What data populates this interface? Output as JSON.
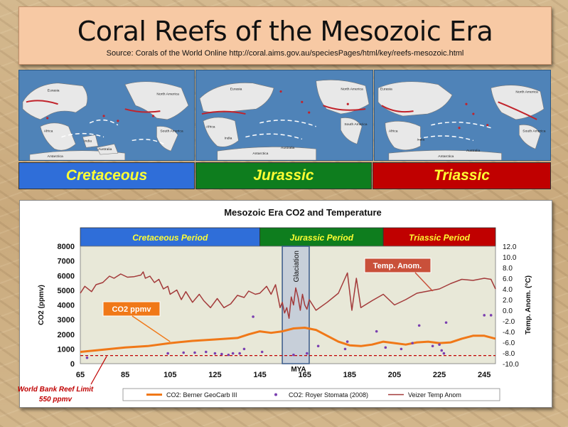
{
  "title": "Coral Reefs of the Mesozoic Era",
  "source": "Source: Corals of the World Online http://coral.aims.gov.au/speciesPages/html/key/reefs-mesozoic.html",
  "maps": [
    {
      "name": "cretaceous",
      "labels": [
        "Eurasia",
        "North America",
        "Africa",
        "South America",
        "India",
        "Antarctica",
        "Australia"
      ]
    },
    {
      "name": "jurassic",
      "labels": [
        "Eurasia",
        "North America",
        "Africa",
        "South America",
        "India",
        "Antarctica",
        "Australia"
      ]
    },
    {
      "name": "triassic",
      "labels": [
        "Eurasia",
        "North America",
        "Africa",
        "South America",
        "India",
        "Antarctica",
        "Australia"
      ]
    }
  ],
  "periods": [
    {
      "label": "Cretaceous",
      "color": "#2f6ed9"
    },
    {
      "label": "Jurassic",
      "color": "#0e7d1e"
    },
    {
      "label": "Triassic",
      "color": "#c00000"
    }
  ],
  "world_bank_label": [
    "World Bank Reef Limit",
    "550 ppmv"
  ],
  "chart_data": {
    "type": "line",
    "title": "Mesozoic Era CO2 and Temperature",
    "xlabel": "MYA",
    "ylabel": "CO2 (ppmv)",
    "y2label": "Temp. Anom. (°C)",
    "xlim": [
      65,
      250
    ],
    "ylim": [
      0,
      8000
    ],
    "y2lim": [
      -10,
      12
    ],
    "xticks": [
      65,
      85,
      105,
      125,
      145,
      165,
      185,
      205,
      225,
      245
    ],
    "yticks": [
      0,
      1000,
      2000,
      3000,
      4000,
      5000,
      6000,
      7000,
      8000
    ],
    "y2ticks": [
      -10.0,
      -8.0,
      -6.0,
      -4.0,
      -2.0,
      0.0,
      2.0,
      4.0,
      6.0,
      8.0,
      10.0,
      12.0
    ],
    "period_bands": [
      {
        "label": "Cretaceous Period",
        "from": 65,
        "to": 145,
        "color": "#2f6ed9",
        "text_color": "#ffff33"
      },
      {
        "label": "Jurassic Period",
        "from": 145,
        "to": 200,
        "color": "#0e7d1e",
        "text_color": "#ffff33"
      },
      {
        "label": "Triassic Period",
        "from": 200,
        "to": 250,
        "color": "#c00000",
        "text_color": "#ffff33"
      }
    ],
    "glaciation": {
      "label": "Glaciation",
      "from": 155,
      "to": 167
    },
    "reef_limit": 550,
    "annotations": [
      {
        "label": "CO2 ppmv",
        "x": 90,
        "y": 3700,
        "color": "#f07818"
      },
      {
        "label": "Temp. Anom.",
        "x": 190,
        "y": 6500,
        "color": "#c9503a"
      }
    ],
    "series": [
      {
        "name": "CO2: Berner GeoCarb III",
        "color": "#f07818",
        "axis": "left",
        "x": [
          65,
          75,
          85,
          95,
          105,
          115,
          125,
          135,
          140,
          145,
          150,
          155,
          160,
          165,
          170,
          175,
          180,
          185,
          190,
          195,
          200,
          205,
          210,
          215,
          220,
          225,
          230,
          235,
          240,
          245,
          250
        ],
        "y": [
          800,
          950,
          1100,
          1200,
          1400,
          1550,
          1650,
          1750,
          2000,
          2200,
          2100,
          2200,
          2400,
          2450,
          2300,
          1900,
          1500,
          1250,
          1200,
          1300,
          1500,
          1400,
          1300,
          1450,
          1500,
          1400,
          1450,
          1700,
          1900,
          1900,
          1700
        ]
      },
      {
        "name": "CO2: Royer Stomata (2008)",
        "color": "#7a3fb0",
        "axis": "left",
        "type": "scatter",
        "x": [
          68,
          104,
          111,
          116,
          121,
          125,
          128,
          131,
          133,
          136,
          138,
          142,
          146,
          160,
          166,
          171,
          183,
          184,
          197,
          201,
          208,
          213,
          216,
          222,
          225,
          226,
          227,
          228,
          245,
          248
        ],
        "y": [
          400,
          700,
          750,
          750,
          800,
          700,
          650,
          600,
          700,
          700,
          1000,
          3200,
          800,
          600,
          700,
          1200,
          1000,
          1500,
          2200,
          1100,
          1000,
          1400,
          2600,
          1200,
          1300,
          900,
          700,
          2800,
          3300,
          3300
        ]
      },
      {
        "name": "Veizer Temp Anom",
        "color": "#a33a3a",
        "axis": "right",
        "x": [
          65,
          67,
          70,
          72,
          75,
          78,
          80,
          83,
          86,
          89,
          92,
          93,
          94,
          96,
          98,
          100,
          102,
          104,
          105,
          108,
          110,
          112,
          115,
          118,
          120,
          123,
          126,
          129,
          132,
          135,
          138,
          140,
          143,
          145,
          148,
          150,
          152,
          154,
          155,
          156,
          157,
          158,
          159,
          160,
          161,
          162,
          163,
          164,
          165,
          166,
          167,
          170,
          175,
          180,
          184,
          186,
          188,
          190,
          195,
          200,
          205,
          210,
          215,
          220,
          225,
          230,
          235,
          240,
          245,
          248,
          250
        ],
        "y": [
          3.2,
          4.5,
          3.5,
          4.8,
          5.2,
          6.4,
          6.0,
          6.8,
          6.2,
          6.3,
          6.6,
          7.2,
          6.0,
          6.4,
          5.2,
          5.8,
          4.0,
          4.5,
          3.0,
          3.8,
          2.0,
          3.5,
          1.5,
          3.0,
          1.8,
          0.5,
          2.2,
          0.5,
          1.2,
          2.8,
          2.4,
          3.6,
          3.0,
          3.2,
          4.5,
          3.0,
          4.8,
          0.5,
          1.5,
          -0.5,
          0.5,
          -1.5,
          2.5,
          1.0,
          4.2,
          2.5,
          0.0,
          3.0,
          1.0,
          0.2,
          2.0,
          0.0,
          1.5,
          3.2,
          7.0,
          0.0,
          6.0,
          0.5,
          1.8,
          3.0,
          1.0,
          2.0,
          3.2,
          3.6,
          4.0,
          5.0,
          5.8,
          5.6,
          6.0,
          5.8,
          4.0
        ]
      }
    ],
    "legend": "bottom",
    "grid": false
  }
}
